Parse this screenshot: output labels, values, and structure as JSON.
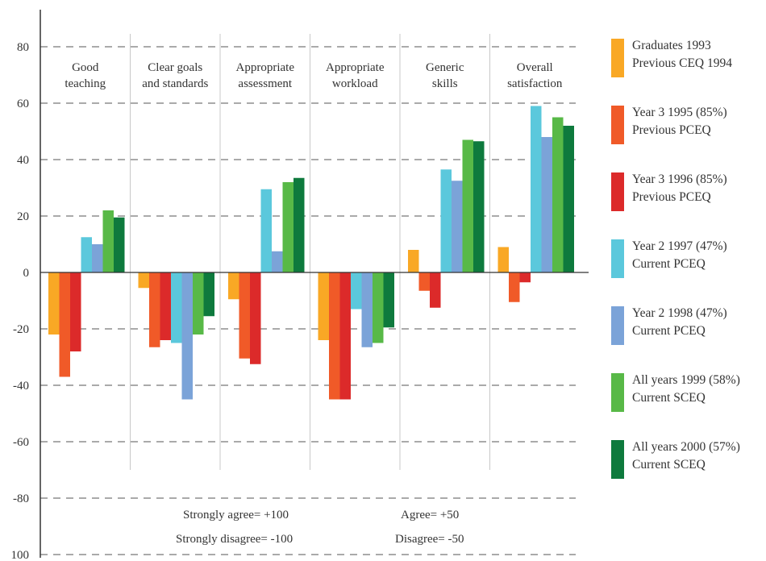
{
  "chart_data": {
    "type": "bar",
    "categories": [
      [
        "Good",
        "teaching"
      ],
      [
        "Clear goals",
        "and standards"
      ],
      [
        "Appropriate",
        "assessment"
      ],
      [
        "Appropriate",
        "workload"
      ],
      [
        "Generic",
        "skills"
      ],
      [
        "Overall",
        "satisfaction"
      ]
    ],
    "y_ticks": [
      "80",
      "60",
      "40",
      "20",
      "0",
      "-20",
      "-40",
      "-60",
      "-80",
      "100"
    ],
    "ylim": [
      -100,
      80
    ],
    "grid": "dashed horizontal",
    "legend_position": "right",
    "series": [
      {
        "name": [
          "Graduates 1993",
          "Previous CEQ 1994"
        ],
        "color": "#F9A825",
        "values": [
          -22,
          -5.5,
          -9.5,
          -24,
          8,
          9
        ]
      },
      {
        "name": [
          "Year 3 1995  (85%)",
          "Previous PCEQ"
        ],
        "color": "#F05A28",
        "values": [
          -37,
          -26.5,
          -30.5,
          -45,
          -6.5,
          -10.5
        ]
      },
      {
        "name": [
          "Year 3 1996 (85%)",
          "Previous PCEQ"
        ],
        "color": "#DC2A2A",
        "values": [
          -28,
          -24,
          -32.5,
          -45,
          -12.5,
          -3.5
        ]
      },
      {
        "name": [
          "Year 2 1997 (47%)",
          "Current PCEQ"
        ],
        "color": "#5BC8DC",
        "values": [
          12.5,
          -25,
          29.5,
          -13,
          36.5,
          59
        ]
      },
      {
        "name": [
          "Year 2 1998 (47%)",
          "Current PCEQ"
        ],
        "color": "#7BA3D8",
        "values": [
          10,
          -45,
          7.5,
          -26.5,
          32.5,
          48
        ]
      },
      {
        "name": [
          "All years 1999 (58%)",
          "Current SCEQ"
        ],
        "color": "#58B947",
        "values": [
          22,
          -22,
          32,
          -25,
          47,
          55
        ]
      },
      {
        "name": [
          "All years 2000 (57%)",
          "Current SCEQ"
        ],
        "color": "#0E7A3D",
        "values": [
          19.5,
          -15.5,
          33.5,
          -19.5,
          46.5,
          52
        ]
      }
    ],
    "annotations": {
      "strongly_agree": "Strongly agree= +100",
      "strongly_disagree": "Strongly disagree= -100",
      "agree": "Agree= +50",
      "disagree": "Disagree= -50"
    }
  }
}
